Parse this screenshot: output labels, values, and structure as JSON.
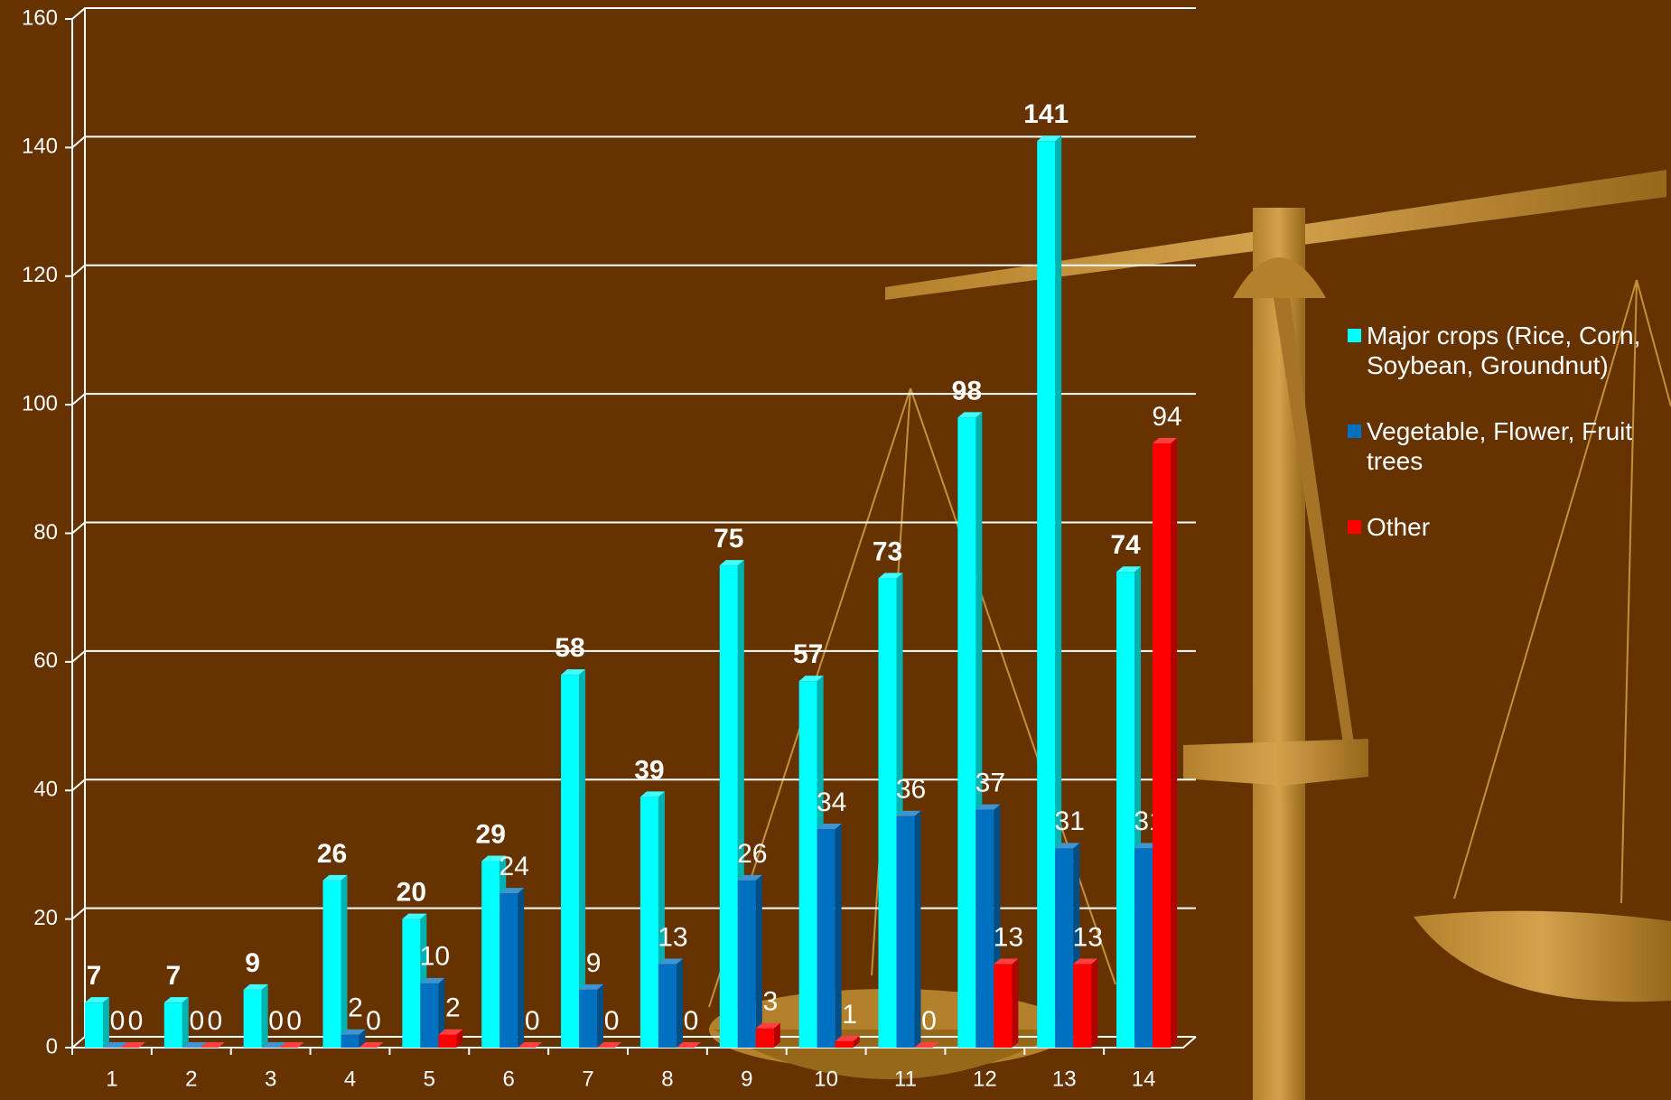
{
  "chart_data": {
    "type": "bar",
    "categories": [
      "1",
      "2",
      "3",
      "4",
      "5",
      "6",
      "7",
      "8",
      "9",
      "10",
      "11",
      "12",
      "13",
      "14"
    ],
    "series": [
      {
        "name": "Major crops (Rice, Corn, Soybean, Groundnut)",
        "color": "#00ffff",
        "values": [
          7,
          7,
          9,
          26,
          20,
          29,
          58,
          39,
          75,
          57,
          73,
          98,
          141,
          74
        ]
      },
      {
        "name": "Vegetable, Flower, Fruit trees",
        "color": "#0070c0",
        "values": [
          0,
          0,
          0,
          2,
          10,
          24,
          9,
          13,
          26,
          34,
          36,
          37,
          31,
          31
        ]
      },
      {
        "name": "Other",
        "color": "#ff0000",
        "values": [
          0,
          0,
          0,
          0,
          2,
          0,
          0,
          0,
          3,
          1,
          0,
          13,
          13,
          94
        ]
      }
    ],
    "ylim": [
      0,
      160
    ],
    "yticks": [
      0,
      20,
      40,
      60,
      80,
      100,
      120,
      140,
      160
    ],
    "grid": true,
    "legend": "right"
  }
}
